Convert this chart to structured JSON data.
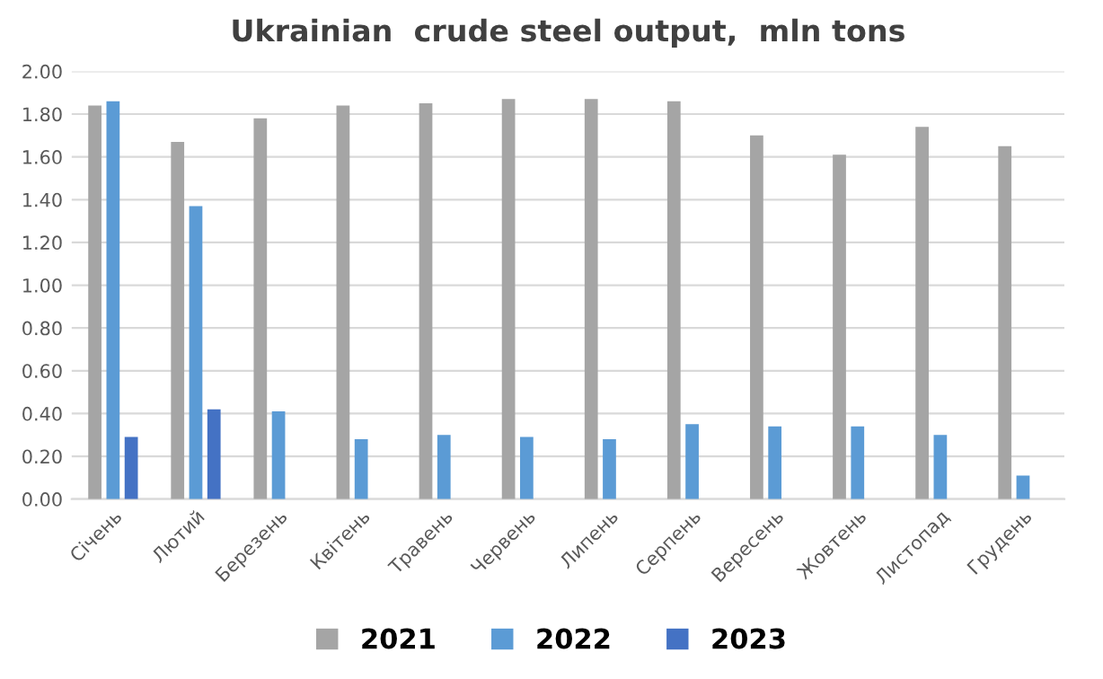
{
  "chart_data": {
    "type": "bar",
    "title": "Ukrainian  crude steel output,  mln tons",
    "categories": [
      "Січень",
      "Лютий",
      "Березень",
      "Квітень",
      "Травень",
      "Червень",
      "Липень",
      "Серпень",
      "Вересень",
      "Жовтень",
      "Листопад",
      "Грудень"
    ],
    "series": [
      {
        "name": "2021",
        "color": "#a5a5a5",
        "values": [
          1.84,
          1.67,
          1.78,
          1.84,
          1.85,
          1.87,
          1.87,
          1.86,
          1.7,
          1.61,
          1.74,
          1.65
        ]
      },
      {
        "name": "2022",
        "color": "#5b9bd5",
        "values": [
          1.86,
          1.37,
          0.41,
          0.28,
          0.3,
          0.29,
          0.28,
          0.35,
          0.34,
          0.34,
          0.3,
          0.11
        ]
      },
      {
        "name": "2023",
        "color": "#4472c4",
        "values": [
          0.29,
          0.42,
          null,
          null,
          null,
          null,
          null,
          null,
          null,
          null,
          null,
          null
        ]
      }
    ],
    "ylim": [
      0,
      2
    ],
    "yticks": [
      {
        "value": 0,
        "label": "0.00"
      },
      {
        "value": 0.2,
        "label": "0.20"
      },
      {
        "value": 0.4,
        "label": "0.40"
      },
      {
        "value": 0.6,
        "label": "0.60"
      },
      {
        "value": 0.8,
        "label": "0.80"
      },
      {
        "value": 1,
        "label": "1.00"
      },
      {
        "value": 1.2,
        "label": "1.20"
      },
      {
        "value": 1.4,
        "label": "1.40"
      },
      {
        "value": 1.6,
        "label": "1.60"
      },
      {
        "value": 1.8,
        "label": "1.80"
      },
      {
        "value": 2,
        "label": "2.00"
      }
    ],
    "grid": "y",
    "legend": "bottom"
  }
}
